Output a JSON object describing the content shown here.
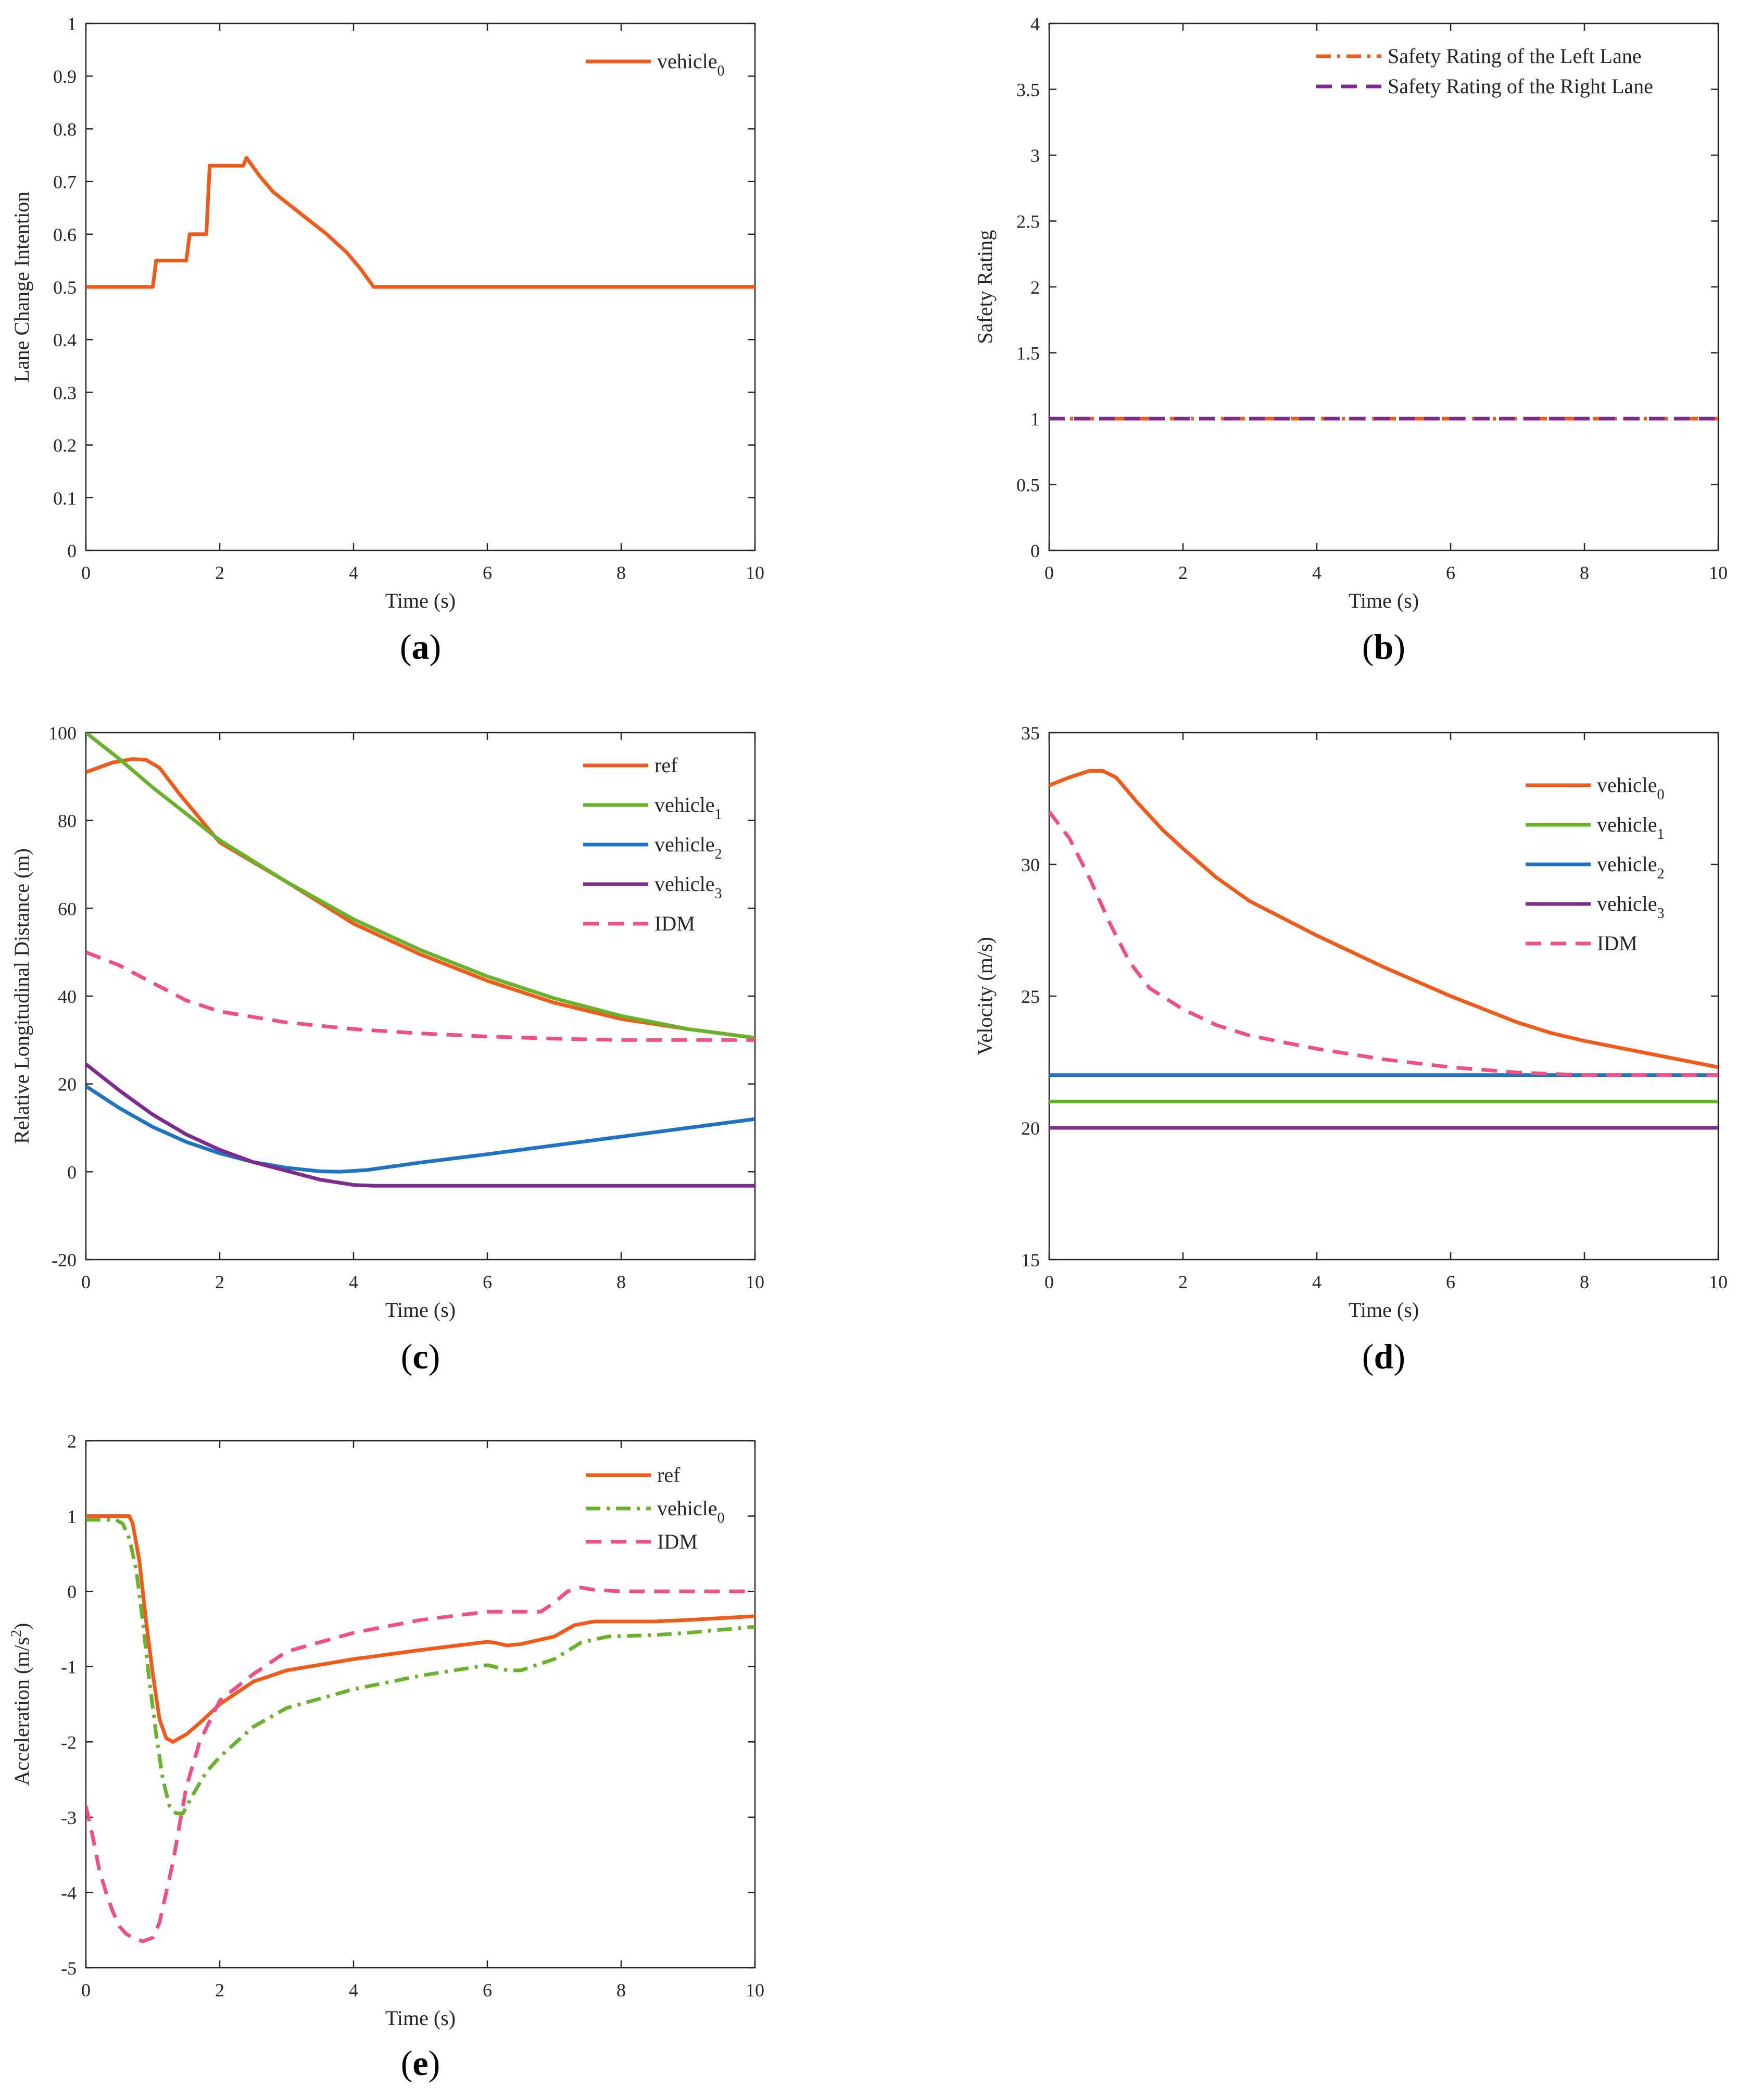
{
  "colors": {
    "orange": "#F05A1A",
    "green": "#6AB22E",
    "blue": "#1F73C0",
    "purple": "#7E2B90",
    "pink": "#EE4F88"
  },
  "chart_data": [
    {
      "id": "a",
      "panel_label": "a",
      "type": "line",
      "xlabel": "Time (s)",
      "ylabel": "Lane Change Intention",
      "xlim": [
        0,
        10
      ],
      "ylim": [
        0,
        1
      ],
      "xticks": [
        0,
        2,
        4,
        6,
        8,
        10
      ],
      "yticks": [
        0,
        0.1,
        0.2,
        0.3,
        0.4,
        0.5,
        0.6,
        0.7,
        0.8,
        0.9,
        1
      ],
      "legend_position": "top-right",
      "series": [
        {
          "name": "vehicle",
          "subscript": "0",
          "color": "#F05A1A",
          "dash": "solid",
          "x": [
            0,
            1.0,
            1.05,
            1.5,
            1.55,
            1.8,
            1.85,
            2.35,
            2.4,
            2.6,
            2.8,
            3.0,
            3.3,
            3.6,
            3.9,
            4.1,
            4.3,
            10
          ],
          "y": [
            0.5,
            0.5,
            0.55,
            0.55,
            0.6,
            0.6,
            0.73,
            0.73,
            0.745,
            0.71,
            0.68,
            0.66,
            0.63,
            0.6,
            0.565,
            0.535,
            0.5,
            0.5
          ]
        }
      ]
    },
    {
      "id": "b",
      "panel_label": "b",
      "type": "line",
      "xlabel": "Time (s)",
      "ylabel": "Safety Rating",
      "xlim": [
        0,
        10
      ],
      "ylim": [
        0,
        4
      ],
      "xticks": [
        0,
        2,
        4,
        6,
        8,
        10
      ],
      "yticks": [
        0,
        0.5,
        1,
        1.5,
        2,
        2.5,
        3,
        3.5,
        4
      ],
      "legend_position": "top-right",
      "series": [
        {
          "name": "Safety Rating of the Left Lane",
          "subscript": "",
          "color": "#F05A1A",
          "dash": "dashdot",
          "x": [
            0,
            10
          ],
          "y": [
            1,
            1
          ]
        },
        {
          "name": "Safety Rating of the Right Lane",
          "subscript": "",
          "color": "#7E2B90",
          "dash": "dashed",
          "x": [
            0,
            10
          ],
          "y": [
            1,
            1
          ]
        }
      ]
    },
    {
      "id": "c",
      "panel_label": "c",
      "type": "line",
      "xlabel": "Time (s)",
      "ylabel": "Relative Longitudinal Distance (m)",
      "xlim": [
        0,
        10
      ],
      "ylim": [
        -20,
        100
      ],
      "xticks": [
        0,
        2,
        4,
        6,
        8,
        10
      ],
      "yticks": [
        -20,
        0,
        20,
        40,
        60,
        80,
        100
      ],
      "legend_position": "top-right",
      "series": [
        {
          "name": "ref",
          "subscript": "",
          "color": "#F05A1A",
          "dash": "solid",
          "x": [
            0,
            0.4,
            0.7,
            0.9,
            1.1,
            1.4,
            2.0,
            3.0,
            4.0,
            5.0,
            6.0,
            7.0,
            8.0,
            9.0,
            10.0
          ],
          "y": [
            91,
            93.2,
            94,
            93.8,
            92,
            86,
            75,
            66,
            56.5,
            49.5,
            43.5,
            38.5,
            34.8,
            32.5,
            30.5
          ]
        },
        {
          "name": "vehicle",
          "subscript": "1",
          "color": "#6AB22E",
          "dash": "solid",
          "x": [
            0,
            0.5,
            1.0,
            1.5,
            2.0,
            3.0,
            4.0,
            5.0,
            6.0,
            7.0,
            8.0,
            9.0,
            10.0
          ],
          "y": [
            100,
            94,
            87.5,
            81.5,
            75.5,
            66,
            57.5,
            50.5,
            44.5,
            39.5,
            35.5,
            32.5,
            30.5
          ]
        },
        {
          "name": "vehicle",
          "subscript": "2",
          "color": "#1F73C0",
          "dash": "solid",
          "x": [
            0,
            0.5,
            1.0,
            1.5,
            2.0,
            2.5,
            3.0,
            3.5,
            3.8,
            4.2,
            5.0,
            6.0,
            7.0,
            8.0,
            9.0,
            10.0
          ],
          "y": [
            19.5,
            14.5,
            10.2,
            6.8,
            4.2,
            2.2,
            0.9,
            0.1,
            0,
            0.4,
            2.1,
            4.0,
            6.0,
            8.0,
            10.0,
            12.0
          ]
        },
        {
          "name": "vehicle",
          "subscript": "3",
          "color": "#7E2B90",
          "dash": "solid",
          "x": [
            0,
            0.5,
            1.0,
            1.5,
            2.0,
            2.5,
            3.0,
            3.5,
            4.0,
            4.3,
            10.0
          ],
          "y": [
            24.5,
            18.5,
            13.0,
            8.5,
            5.0,
            2.2,
            0.2,
            -1.8,
            -3.0,
            -3.2,
            -3.2
          ]
        },
        {
          "name": "IDM",
          "subscript": "",
          "color": "#EE4F88",
          "dash": "dashed",
          "x": [
            0,
            0.5,
            1.0,
            1.5,
            2.0,
            3.0,
            4.0,
            5.0,
            6.0,
            7.0,
            8.0,
            9.0,
            10.0
          ],
          "y": [
            50,
            47,
            43,
            39,
            36.5,
            34,
            32.5,
            31.5,
            30.8,
            30.3,
            30.0,
            30.0,
            30.0
          ]
        }
      ]
    },
    {
      "id": "d",
      "panel_label": "d",
      "type": "line",
      "xlabel": "Time (s)",
      "ylabel": "Velocity (m/s)",
      "xlim": [
        0,
        10
      ],
      "ylim": [
        15,
        35
      ],
      "xticks": [
        0,
        2,
        4,
        6,
        8,
        10
      ],
      "yticks": [
        15,
        20,
        25,
        30,
        35
      ],
      "legend_position": "top-right",
      "series": [
        {
          "name": "vehicle",
          "subscript": "0",
          "color": "#F05A1A",
          "dash": "solid",
          "x": [
            0,
            0.3,
            0.6,
            0.8,
            1.0,
            1.3,
            1.7,
            2.0,
            2.5,
            3.0,
            4.0,
            5.0,
            6.0,
            7.0,
            7.5,
            8.0,
            9.0,
            10.0
          ],
          "y": [
            33,
            33.3,
            33.55,
            33.55,
            33.3,
            32.4,
            31.3,
            30.6,
            29.5,
            28.6,
            27.3,
            26.1,
            25.0,
            24.0,
            23.6,
            23.3,
            22.8,
            22.3
          ]
        },
        {
          "name": "vehicle",
          "subscript": "1",
          "color": "#6AB22E",
          "dash": "solid",
          "x": [
            0,
            10
          ],
          "y": [
            21,
            21
          ]
        },
        {
          "name": "vehicle",
          "subscript": "2",
          "color": "#1F73C0",
          "dash": "solid",
          "x": [
            0,
            10
          ],
          "y": [
            22,
            22
          ]
        },
        {
          "name": "vehicle",
          "subscript": "3",
          "color": "#7E2B90",
          "dash": "solid",
          "x": [
            0,
            10
          ],
          "y": [
            20,
            20
          ]
        },
        {
          "name": "IDM",
          "subscript": "",
          "color": "#EE4F88",
          "dash": "dashed",
          "x": [
            0,
            0.3,
            0.6,
            0.9,
            1.2,
            1.5,
            2.0,
            2.5,
            3.0,
            4.0,
            5.0,
            6.0,
            7.0,
            8.0,
            9.0,
            10.0
          ],
          "y": [
            32,
            31,
            29.5,
            27.8,
            26.3,
            25.3,
            24.5,
            23.9,
            23.5,
            23.0,
            22.6,
            22.3,
            22.1,
            22.0,
            22.0,
            22.0
          ]
        }
      ]
    },
    {
      "id": "e",
      "panel_label": "e",
      "type": "line",
      "xlabel": "Time (s)",
      "ylabel": "Acceleration (m/s",
      "ylabel_sup": "2",
      "ylabel_end": ")",
      "xlim": [
        0,
        10
      ],
      "ylim": [
        -5,
        2
      ],
      "xticks": [
        0,
        2,
        4,
        6,
        8,
        10
      ],
      "yticks": [
        -5,
        -4,
        -3,
        -2,
        -1,
        0,
        1,
        2
      ],
      "legend_position": "top-right",
      "series": [
        {
          "name": "ref",
          "subscript": "",
          "color": "#F05A1A",
          "dash": "solid",
          "x": [
            0,
            0.65,
            0.7,
            0.8,
            0.9,
            1.0,
            1.1,
            1.2,
            1.3,
            1.5,
            1.7,
            2.0,
            2.5,
            3.0,
            4.0,
            5.0,
            6.0,
            6.1,
            6.3,
            6.5,
            7.0,
            7.3,
            7.6,
            8.0,
            8.5,
            9.0,
            10.0
          ],
          "y": [
            1,
            1,
            0.9,
            0.4,
            -0.4,
            -1.1,
            -1.7,
            -1.95,
            -2.0,
            -1.9,
            -1.75,
            -1.5,
            -1.2,
            -1.05,
            -0.9,
            -0.78,
            -0.67,
            -0.68,
            -0.72,
            -0.7,
            -0.6,
            -0.45,
            -0.4,
            -0.4,
            -0.4,
            -0.38,
            -0.33
          ]
        },
        {
          "name": "vehicle",
          "subscript": "0",
          "color": "#6AB22E",
          "dash": "dashdot",
          "x": [
            0,
            0.45,
            0.55,
            0.65,
            0.75,
            0.85,
            0.95,
            1.05,
            1.15,
            1.25,
            1.35,
            1.45,
            1.6,
            1.8,
            2.0,
            2.5,
            3.0,
            4.0,
            5.0,
            6.0,
            6.1,
            6.3,
            6.5,
            7.0,
            7.4,
            7.8,
            8.5,
            9.0,
            10.0
          ],
          "y": [
            0.95,
            0.95,
            0.9,
            0.7,
            0.3,
            -0.4,
            -1.2,
            -1.9,
            -2.5,
            -2.85,
            -2.95,
            -2.95,
            -2.7,
            -2.4,
            -2.2,
            -1.8,
            -1.55,
            -1.3,
            -1.12,
            -0.98,
            -1.0,
            -1.05,
            -1.05,
            -0.9,
            -0.68,
            -0.6,
            -0.58,
            -0.55,
            -0.47
          ]
        },
        {
          "name": "IDM",
          "subscript": "",
          "color": "#EE4F88",
          "dash": "dashed",
          "x": [
            0,
            0.1,
            0.2,
            0.3,
            0.4,
            0.5,
            0.6,
            0.7,
            0.85,
            1.0,
            1.1,
            1.2,
            1.3,
            1.4,
            1.5,
            1.7,
            2.0,
            2.5,
            3.0,
            4.0,
            5.0,
            6.0,
            6.5,
            6.8,
            7.0,
            7.2,
            7.4,
            7.6,
            8.0,
            9.0,
            10.0
          ],
          "y": [
            -2.85,
            -3.25,
            -3.7,
            -4.0,
            -4.25,
            -4.45,
            -4.55,
            -4.6,
            -4.65,
            -4.6,
            -4.4,
            -4.0,
            -3.6,
            -3.1,
            -2.6,
            -2.0,
            -1.45,
            -1.1,
            -0.8,
            -0.55,
            -0.38,
            -0.27,
            -0.27,
            -0.27,
            -0.15,
            0.0,
            0.05,
            0.02,
            0.0,
            0.0,
            0.0
          ]
        }
      ]
    }
  ]
}
